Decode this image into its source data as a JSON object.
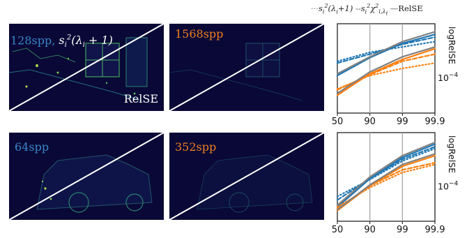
{
  "legend": {
    "entries": [
      {
        "style": "dotted",
        "label": "s_i^2(λ_i+1)"
      },
      {
        "style": "dashed",
        "label": "s_i^2 χ^2_{i,λ_i}"
      },
      {
        "style": "solid",
        "label": "RelSE"
      }
    ],
    "dotted_prefix": "···",
    "dashed_prefix": "--",
    "solid_prefix": "—",
    "solid_text": "RelSE"
  },
  "rows": [
    {
      "left_label": "128spp",
      "left_label_suffix": ",",
      "left_label_color": "#3a86c8",
      "right_label": "1568spp",
      "right_label_color": "#f07f21",
      "bottom_right_label": "RelSE",
      "bottom_right_color": "#ffffff"
    },
    {
      "left_label": "64spp",
      "left_label_color": "#3a86c8",
      "right_label": "352spp",
      "right_label_color": "#f07f21"
    }
  ],
  "chart_data": [
    {
      "type": "line",
      "x_ticks": [
        "50",
        "90",
        "99",
        "99.9"
      ],
      "ylabel": "logRelSE",
      "y_tick_label": "10^{-4}",
      "vlines_at": [
        1,
        2
      ],
      "series": [
        {
          "color": "#1f77b4",
          "style": "solid",
          "values": [
            0.42,
            0.62,
            0.78,
            0.88
          ]
        },
        {
          "color": "#1f77b4",
          "style": "dashed",
          "values": [
            0.56,
            0.66,
            0.77,
            0.85
          ]
        },
        {
          "color": "#1f77b4",
          "style": "dotted",
          "values": [
            0.58,
            0.68,
            0.74,
            0.8
          ]
        },
        {
          "color": "#ff7f0e",
          "style": "solid",
          "values": [
            0.2,
            0.44,
            0.6,
            0.72
          ]
        },
        {
          "color": "#ff7f0e",
          "style": "dashed",
          "values": [
            0.26,
            0.43,
            0.58,
            0.66
          ]
        },
        {
          "color": "#ff7f0e",
          "style": "dotted",
          "values": [
            0.27,
            0.42,
            0.5,
            0.56
          ]
        },
        {
          "color": "#808080",
          "style": "solid",
          "values": [
            0.44,
            0.63,
            0.8,
            0.91
          ]
        },
        {
          "color": "#808080",
          "style": "solid",
          "values": [
            0.22,
            0.46,
            0.63,
            0.74
          ]
        }
      ]
    },
    {
      "type": "line",
      "x_ticks": [
        "50",
        "90",
        "99",
        "99.9"
      ],
      "ylabel": "logRelSE",
      "y_tick_label": "10^{-4}",
      "vlines_at": [
        1,
        2
      ],
      "series": [
        {
          "color": "#1f77b4",
          "style": "solid",
          "values": [
            0.16,
            0.48,
            0.72,
            0.87
          ]
        },
        {
          "color": "#1f77b4",
          "style": "dashed",
          "values": [
            0.24,
            0.48,
            0.7,
            0.84
          ]
        },
        {
          "color": "#1f77b4",
          "style": "dotted",
          "values": [
            0.28,
            0.47,
            0.68,
            0.82
          ]
        },
        {
          "color": "#ff7f0e",
          "style": "solid",
          "values": [
            0.12,
            0.4,
            0.62,
            0.74
          ]
        },
        {
          "color": "#ff7f0e",
          "style": "dashed",
          "values": [
            0.14,
            0.4,
            0.58,
            0.66
          ]
        },
        {
          "color": "#ff7f0e",
          "style": "dotted",
          "values": [
            0.16,
            0.38,
            0.55,
            0.64
          ]
        },
        {
          "color": "#808080",
          "style": "solid",
          "values": [
            0.18,
            0.5,
            0.74,
            0.89
          ]
        },
        {
          "color": "#808080",
          "style": "solid",
          "values": [
            0.13,
            0.41,
            0.64,
            0.76
          ]
        }
      ]
    }
  ]
}
